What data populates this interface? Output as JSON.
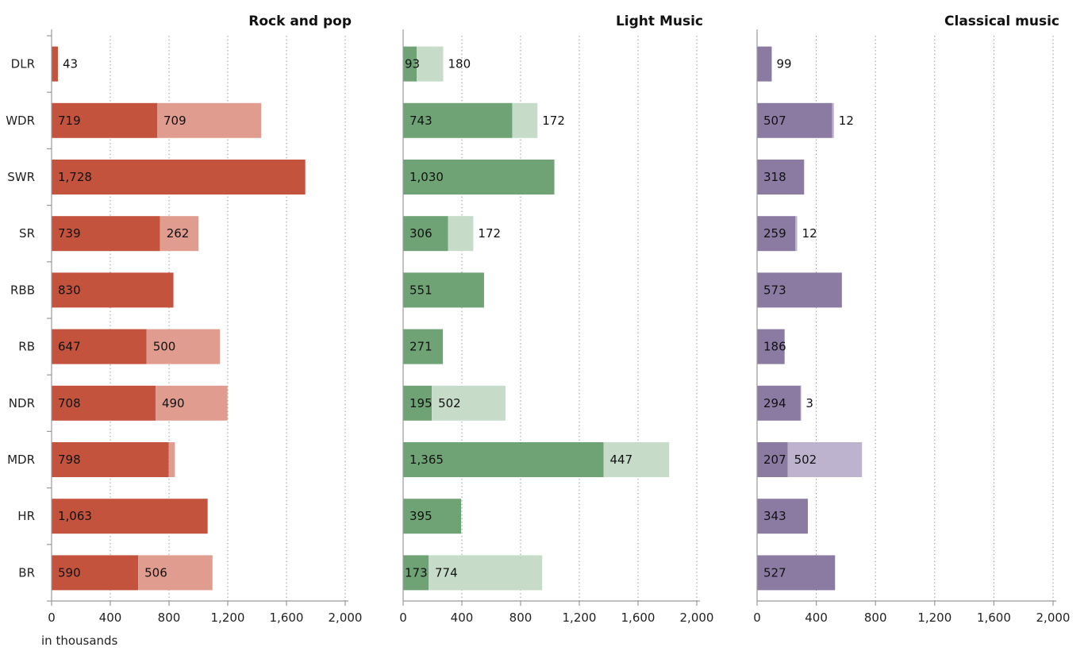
{
  "chart_data": {
    "type": "bar",
    "orientation": "horizontal",
    "stacked": true,
    "categories": [
      "DLR",
      "WDR",
      "SWR",
      "SR",
      "RBB",
      "RB",
      "NDR",
      "MDR",
      "HR",
      "BR"
    ],
    "unit_label": "in thousands",
    "xlim": [
      0,
      2000
    ],
    "x_ticks": [
      "0",
      "400",
      "800",
      "1,200",
      "1,600",
      "2,000"
    ],
    "grid": "vertical dotted",
    "panels": [
      {
        "title": "Rock and pop",
        "colors": [
          "#c4533d",
          "#df9c8f"
        ],
        "series": [
          {
            "values": [
              43,
              719,
              1728,
              739,
              830,
              647,
              708,
              798,
              1063,
              590
            ]
          },
          {
            "values": [
              0,
              709,
              0,
              262,
              0,
              500,
              490,
              42,
              0,
              506
            ]
          }
        ],
        "labels": [
          [
            "43",
            "719",
            "1,728",
            "739",
            "830",
            "647",
            "708",
            "798",
            "1,063",
            "590"
          ],
          [
            "",
            "709",
            "",
            "262",
            "",
            "500",
            "490",
            "",
            "",
            "506"
          ]
        ]
      },
      {
        "title": "Light Music",
        "colors": [
          "#6fa375",
          "#c6dcc8"
        ],
        "series": [
          {
            "values": [
              93,
              743,
              1030,
              306,
              551,
              271,
              195,
              1365,
              395,
              173
            ]
          },
          {
            "values": [
              180,
              172,
              0,
              172,
              0,
              0,
              502,
              447,
              0,
              774
            ]
          }
        ],
        "labels": [
          [
            "93",
            "743",
            "1,030",
            "306",
            "551",
            "271",
            "195",
            "1,365",
            "395",
            "173"
          ],
          [
            "180",
            "172",
            "",
            "172",
            "",
            "",
            "502",
            "447",
            "",
            "774"
          ]
        ]
      },
      {
        "title": "Classical music",
        "colors": [
          "#8b7ba3",
          "#bdb3cf"
        ],
        "series": [
          {
            "values": [
              99,
              507,
              318,
              259,
              573,
              186,
              294,
              207,
              343,
              527
            ]
          },
          {
            "values": [
              0,
              12,
              0,
              12,
              0,
              0,
              3,
              502,
              0,
              0
            ]
          }
        ],
        "labels": [
          [
            "99",
            "507",
            "318",
            "259",
            "573",
            "186",
            "294",
            "207",
            "343",
            "527"
          ],
          [
            "",
            "12",
            "",
            "12",
            "",
            "",
            "3",
            "502",
            "",
            ""
          ]
        ]
      }
    ]
  }
}
